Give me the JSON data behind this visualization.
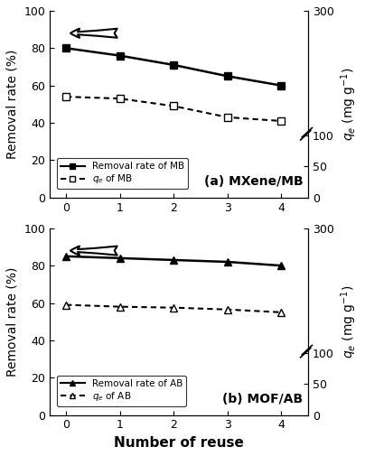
{
  "x": [
    0,
    1,
    2,
    3,
    4
  ],
  "mb_removal": [
    80,
    76,
    71,
    65,
    60
  ],
  "mb_qe": [
    162,
    159,
    147,
    129,
    123
  ],
  "ab_removal": [
    85,
    84,
    83,
    82,
    80
  ],
  "ab_qe": [
    177,
    174,
    172.5,
    169.5,
    165
  ],
  "title_a": "(a) MXene/MB",
  "title_b": "(b) MOF/AB",
  "legend_a_line1": "Removal rate of MB",
  "legend_a_line2": "$q_e$ of MB",
  "legend_b_line1": "Removal rate of AB",
  "legend_b_line2": "$q_e$ of AB",
  "xlabel": "Number of reuse",
  "ylabel_left": "Removal rate (%)",
  "ylabel_right": "$q_e$ (mg g$^{-1}$)",
  "ylim_left": [
    0,
    100
  ],
  "ylim_right": [
    0,
    300
  ],
  "yticks_left": [
    0,
    20,
    40,
    60,
    80,
    100
  ],
  "yticks_right": [
    0,
    50,
    100,
    300
  ],
  "ytick_right_labels": [
    "0",
    "50",
    "100",
    "300"
  ],
  "bg_color": "#ffffff"
}
